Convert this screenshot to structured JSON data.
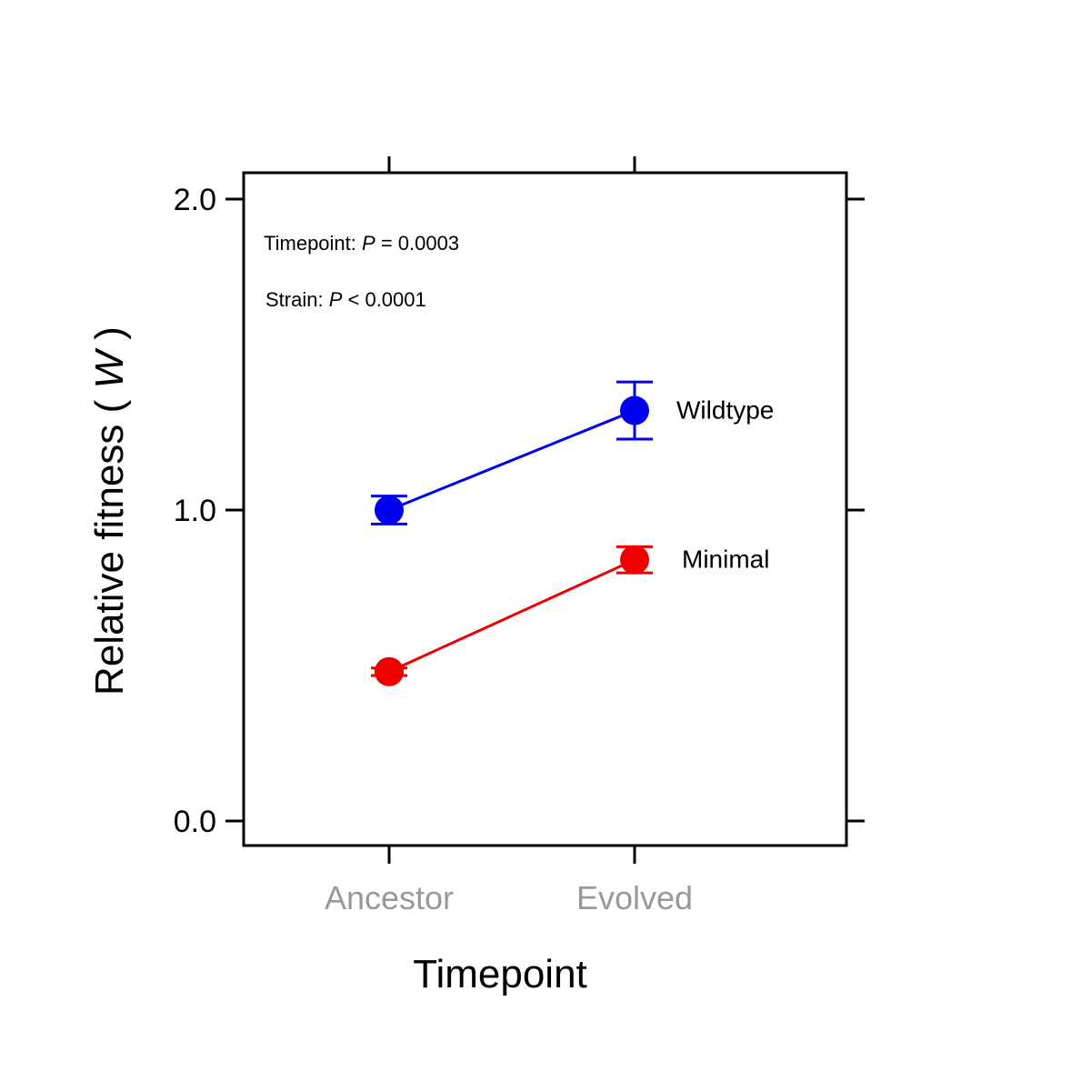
{
  "chart_data": {
    "type": "line",
    "xlabel": "Timepoint",
    "ylabel_text": "Relative fitness ( ",
    "ylabel_symbol": "W",
    "ylabel_close": " )",
    "categories": [
      "Ancestor",
      "Evolved"
    ],
    "ylim": [
      -0.08,
      2.08
    ],
    "yticks": [
      {
        "value": 0.0,
        "label": "0.0"
      },
      {
        "value": 1.0,
        "label": "1.0"
      },
      {
        "value": 2.0,
        "label": "2.0"
      }
    ],
    "grid": false,
    "series": [
      {
        "name": "Wildtype",
        "color": "#0000ee",
        "values": [
          1.0,
          1.32
        ],
        "error": [
          0.045,
          0.092
        ]
      },
      {
        "name": "Minimal",
        "color": "#ee0000",
        "values": [
          0.48,
          0.84
        ],
        "error": [
          0.012,
          0.042
        ]
      }
    ],
    "annotations": [
      {
        "prefix": "Timepoint: ",
        "symbol": "P",
        "suffix": " = 0.0003"
      },
      {
        "prefix": "Strain: ",
        "symbol": "P",
        "suffix": " < 0.0001"
      }
    ]
  }
}
